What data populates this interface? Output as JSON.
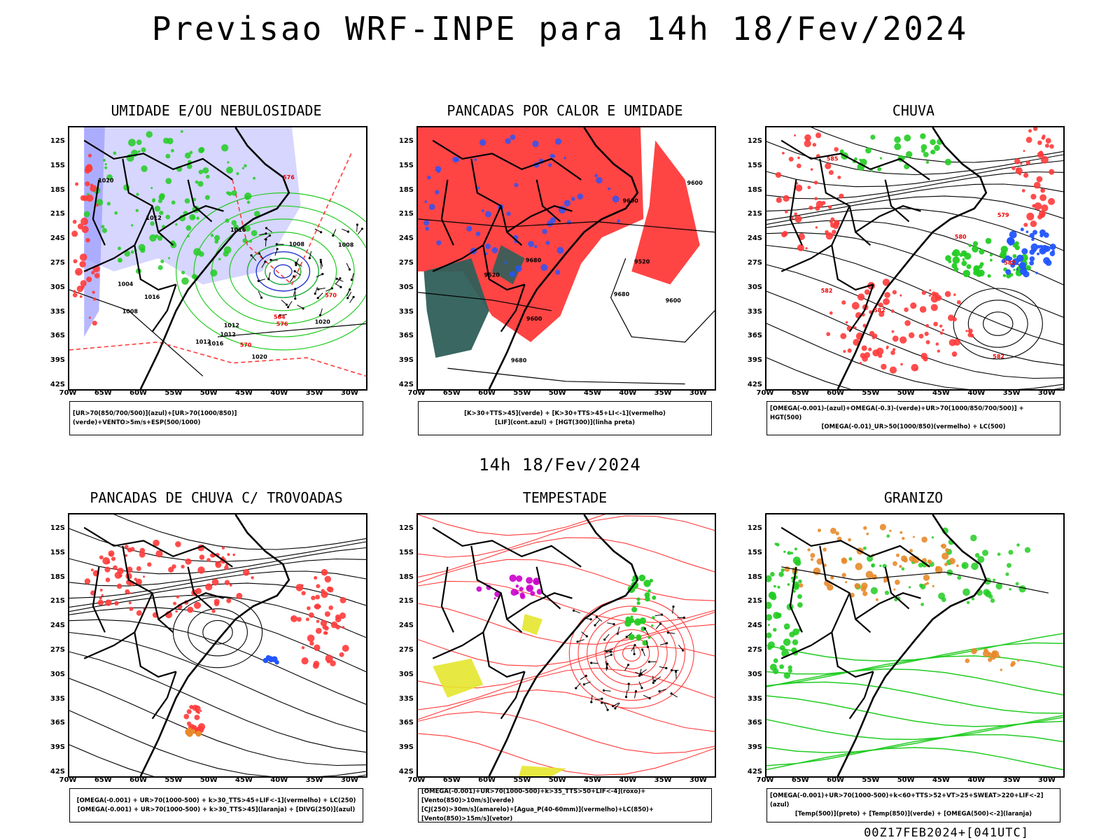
{
  "title": "Previsao WRF-INPE  para 14h 18/Fev/2024",
  "mid_title": "14h 18/Fev/2024",
  "footer": "00Z17FEB2024+[041UTC]",
  "lat_ticks": [
    "12S",
    "15S",
    "18S",
    "21S",
    "24S",
    "27S",
    "30S",
    "33S",
    "36S",
    "39S",
    "42S"
  ],
  "lon_ticks": [
    "70W",
    "65W",
    "60W",
    "55W",
    "50W",
    "45W",
    "40W",
    "35W",
    "30W"
  ],
  "colors": {
    "humid_blue": "#b4b4ff",
    "humid_green": "#22cc22",
    "red": "#ff3a3a",
    "dark_green": "#2f5f5a",
    "blue": "#2255ff",
    "orange": "#e88a2a",
    "yellow": "#e6e62e",
    "purple": "#cc00cc"
  },
  "panels": [
    {
      "id": "umidade",
      "title": "UMIDADE E/OU NEBULOSIDADE",
      "legend": [
        "[UR>70(850/700/500)](azul)+[UR>70(1000/850)](verde)+VENTO>5m/s+ESP(500/1000)"
      ],
      "contour_labels": [
        "1012",
        "1012",
        "1016",
        "1020",
        "1008",
        "1008",
        "1012",
        "1004",
        "1008",
        "1012",
        "1016",
        "1020",
        "1016",
        "1020",
        "576",
        "570",
        "564",
        "576",
        "570"
      ]
    },
    {
      "id": "pancadas-calor",
      "title": "PANCADAS POR CALOR E UMIDADE",
      "legend": [
        "[K>30+TTS>45](verde) + [K>30+TTS>45+LI<-1](vermelho)",
        "[LIF](cont.azul) + [HGT(300)](linha preta)"
      ],
      "contour_labels": [
        "9680",
        "9680",
        "9680",
        "9600",
        "9600",
        "9600",
        "9520",
        "9600",
        "9520"
      ]
    },
    {
      "id": "chuva",
      "title": "CHUVA",
      "legend": [
        "[OMEGA(-0.001)-(azul)+OMEGA(-0.3)-(verde)+UR>70(1000/850/700/500)] + HGT(500)",
        "[OMEGA(-0.01)_UR>50(1000/850)(vermelho) + LC(500)"
      ],
      "contour_labels": [
        "585",
        "582",
        "582",
        "580",
        "582",
        "582",
        "579"
      ]
    },
    {
      "id": "pancadas-trovoadas",
      "title": "PANCADAS DE CHUVA C/ TROVOADAS",
      "legend": [
        "[OMEGA(-0.001) + UR>70(1000-500) + k>30_TTS>45+LIF<-1](vermelho) + LC(250)",
        "[OMEGA(-0.001) + UR>70(1000-500) + k>30_TTS>45](laranja) + [DIVG(250)](azul)"
      ],
      "contour_labels": []
    },
    {
      "id": "tempestade",
      "title": "TEMPESTADE",
      "legend": [
        "[OMEGA(-0.001)+UR>70(1000-500)+k>35_TTS>50+LIF<-4](roxo)+[Vento(850)>10m/s](verde)",
        "[CJ(250)>30m/s](amarelo)+[Agua_P(40-60mm)](vermelho)+LC(850)+[Vento(850)>15m/s](vetor)"
      ],
      "contour_labels": []
    },
    {
      "id": "granizo",
      "title": "GRANIZO",
      "legend": [
        "[OMEGA(-0.001)+UR>70(1000-500)+k<60+TTS>52+VT>25+SWEAT>220+LIF<-2](azul)",
        "[Temp(500)](preto) + [Temp(850)](verde) + [OMEGA(500)<-2](laranja)"
      ],
      "contour_labels": []
    }
  ]
}
